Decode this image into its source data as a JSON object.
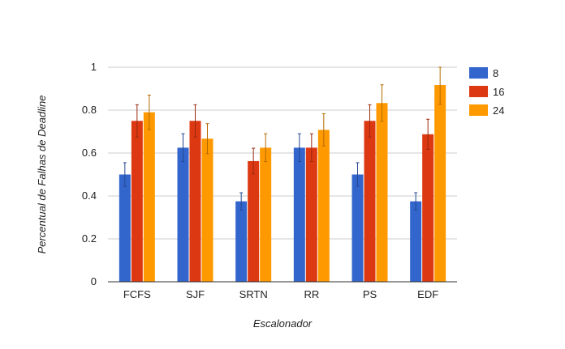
{
  "chart_data": {
    "type": "bar",
    "title": "",
    "xlabel": "Escalonador",
    "ylabel": "Percentual de Falhas de Deadline",
    "categories": [
      "FCFS",
      "SJF",
      "SRTN",
      "RR",
      "PS",
      "EDF"
    ],
    "ylim": [
      0,
      1
    ],
    "yticks": [
      "0",
      "0.2",
      "0.4",
      "0.6",
      "0.8",
      "1"
    ],
    "grid": true,
    "legend_position": "right",
    "series": [
      {
        "name": "8",
        "color": "#3366cc",
        "values": [
          0.5,
          0.625,
          0.375,
          0.625,
          0.5,
          0.375
        ],
        "error": [
          0.055,
          0.065,
          0.04,
          0.065,
          0.055,
          0.04
        ]
      },
      {
        "name": "16",
        "color": "#dc3912",
        "values": [
          0.75,
          0.75,
          0.5625,
          0.625,
          0.75,
          0.6875
        ],
        "error": [
          0.075,
          0.075,
          0.06,
          0.065,
          0.075,
          0.07
        ]
      },
      {
        "name": "24",
        "color": "#ff9900",
        "values": [
          0.79,
          0.667,
          0.625,
          0.708,
          0.833,
          0.917
        ],
        "error": [
          0.08,
          0.07,
          0.065,
          0.075,
          0.085,
          0.09
        ]
      }
    ]
  }
}
